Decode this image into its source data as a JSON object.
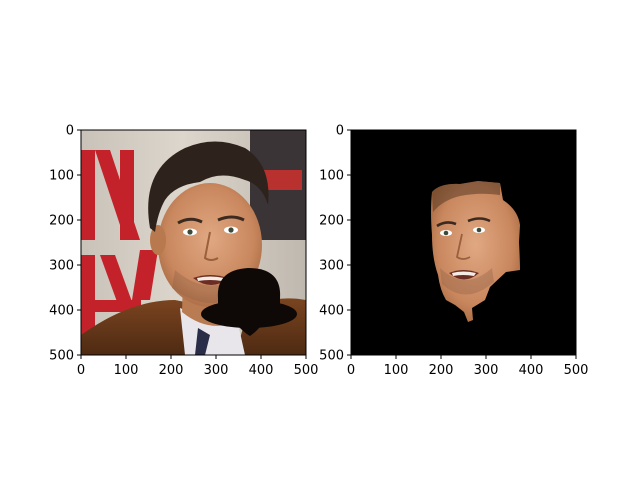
{
  "figure": {
    "background": "#ffffff",
    "panels": [
      {
        "name": "original-with-occluder",
        "xlim": [
          0,
          500
        ],
        "ylim": [
          500,
          0
        ],
        "x_ticks": [
          0,
          100,
          200,
          300,
          400,
          500
        ],
        "y_ticks": [
          0,
          100,
          200,
          300,
          400,
          500
        ],
        "content": "photo",
        "occluder_icon": "bowler-hat-icon",
        "occluder_color": "#0e0807"
      },
      {
        "name": "face-mask",
        "xlim": [
          0,
          500
        ],
        "ylim": [
          500,
          0
        ],
        "x_ticks": [
          0,
          100,
          200,
          300,
          400,
          500
        ],
        "y_ticks": [
          0,
          100,
          200,
          300,
          400,
          500
        ],
        "content": "segmented-face",
        "background_color": "#000000"
      }
    ]
  },
  "chart_data": [
    {
      "type": "image",
      "xlim": [
        0,
        500
      ],
      "ylim": [
        500,
        0
      ],
      "x_ticks": [
        0,
        100,
        200,
        300,
        400,
        500
      ],
      "y_ticks": [
        0,
        100,
        200,
        300,
        400,
        500
      ],
      "grid": false
    },
    {
      "type": "image",
      "xlim": [
        0,
        500
      ],
      "ylim": [
        500,
        0
      ],
      "x_ticks": [
        0,
        100,
        200,
        300,
        400,
        500
      ],
      "y_ticks": [
        0,
        100,
        200,
        300,
        400,
        500
      ],
      "grid": false
    }
  ]
}
